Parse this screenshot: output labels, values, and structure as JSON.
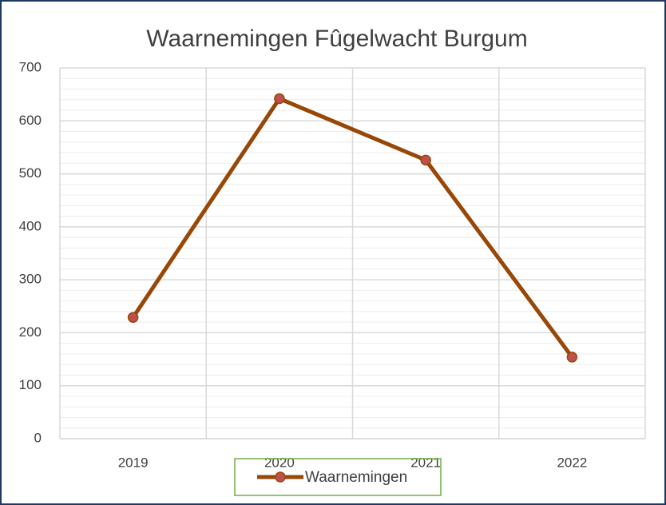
{
  "chart_data": {
    "type": "line",
    "title": "Waarnemingen Fûgelwacht Burgum",
    "categories": [
      "2019",
      "2020",
      "2021",
      "2022"
    ],
    "series": [
      {
        "name": "Waarnemingen",
        "color": "#974706",
        "marker_color": "#c0504d",
        "values": [
          229,
          642,
          526,
          154
        ]
      }
    ],
    "ylim": [
      0,
      700
    ],
    "yticks": [
      0,
      100,
      200,
      300,
      400,
      500,
      600,
      700
    ],
    "grid": true,
    "legend": "bottom"
  }
}
